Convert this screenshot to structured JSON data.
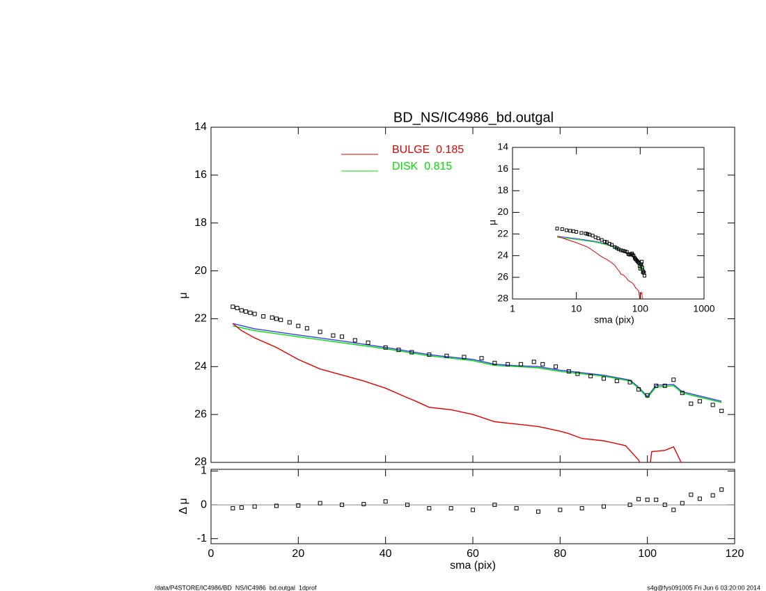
{
  "chart_data": [
    {
      "type": "line",
      "title": "BD_NS/IC4986_bd.outgal",
      "ylabel": "μ",
      "xlim": [
        0,
        120
      ],
      "xticks": [
        0,
        20,
        40,
        60,
        80,
        100,
        120
      ],
      "ylim": [
        14,
        28
      ],
      "yticks": [
        14,
        16,
        18,
        20,
        22,
        24,
        26,
        28
      ],
      "y_inverted": true,
      "series": [
        {
          "marker": "square",
          "color": "#000000",
          "x": [
            5,
            6,
            7,
            8,
            9,
            10,
            12,
            14,
            15,
            16,
            18,
            20,
            22,
            25,
            28,
            30,
            33,
            36,
            40,
            43,
            46,
            50,
            54,
            58,
            62,
            65,
            68,
            71,
            74,
            76,
            79,
            82,
            84,
            87,
            90,
            93,
            96,
            98,
            100,
            102,
            104,
            106,
            108,
            110,
            112,
            115,
            117
          ],
          "values": [
            21.5,
            21.55,
            21.65,
            21.7,
            21.75,
            21.8,
            21.9,
            21.95,
            22.0,
            22.05,
            22.15,
            22.3,
            22.4,
            22.55,
            22.7,
            22.75,
            22.9,
            23.0,
            23.2,
            23.3,
            23.4,
            23.5,
            23.55,
            23.6,
            23.65,
            23.85,
            23.9,
            23.9,
            23.8,
            23.9,
            24.0,
            24.2,
            24.3,
            24.4,
            24.5,
            24.6,
            24.65,
            24.95,
            25.2,
            24.8,
            24.8,
            24.55,
            25.1,
            25.55,
            25.45,
            25.6,
            25.85
          ]
        },
        {
          "color": "#3a3aff",
          "x": [
            5,
            10,
            20,
            30,
            40,
            50,
            60,
            65,
            70,
            75,
            80,
            90,
            96,
            98,
            100,
            102,
            106,
            108,
            117
          ],
          "values": [
            22.2,
            22.42,
            22.68,
            22.93,
            23.2,
            23.5,
            23.7,
            23.9,
            23.96,
            24.0,
            24.15,
            24.36,
            24.56,
            24.86,
            25.25,
            24.78,
            24.75,
            25.05,
            25.45
          ]
        },
        {
          "name": "BULGE  0.185",
          "color": "#e00000",
          "x": [
            5,
            7,
            10,
            15,
            20,
            25,
            30,
            35,
            40,
            45,
            47,
            50,
            55,
            60,
            65,
            70,
            75,
            80,
            82,
            85,
            90,
            95,
            98,
            99,
            100,
            101,
            104,
            106,
            108
          ],
          "values": [
            22.2,
            22.5,
            22.8,
            23.2,
            23.7,
            24.1,
            24.35,
            24.6,
            24.9,
            25.3,
            25.45,
            25.7,
            25.8,
            26.0,
            26.3,
            26.4,
            26.5,
            26.7,
            26.8,
            27.0,
            27.1,
            27.3,
            27.9,
            28.3,
            29.0,
            27.55,
            27.5,
            27.35,
            28.1
          ]
        },
        {
          "name": "DISK  0.815",
          "color": "#00e000",
          "x": [
            5,
            10,
            20,
            30,
            40,
            50,
            60,
            65,
            70,
            75,
            80,
            90,
            96,
            98,
            100,
            102,
            106,
            108,
            117
          ],
          "values": [
            22.3,
            22.5,
            22.75,
            23.0,
            23.25,
            23.55,
            23.75,
            23.95,
            24.0,
            24.05,
            24.2,
            24.4,
            24.6,
            24.9,
            25.3,
            24.85,
            24.8,
            25.1,
            25.5
          ]
        }
      ]
    },
    {
      "type": "scatter",
      "ylabel": "Δ μ",
      "xlabel": "sma (pix)",
      "xlim": [
        0,
        120
      ],
      "xticks": [
        0,
        20,
        40,
        60,
        80,
        100,
        120
      ],
      "ylim": [
        -1.15,
        1.05
      ],
      "yticks": [
        -1,
        0,
        1
      ],
      "x": [
        5,
        7,
        10,
        15,
        20,
        25,
        30,
        35,
        40,
        45,
        50,
        55,
        60,
        65,
        70,
        75,
        80,
        85,
        90,
        96,
        98,
        100,
        102,
        104,
        106,
        108,
        110,
        112,
        115,
        117
      ],
      "values": [
        -0.1,
        -0.08,
        -0.05,
        -0.03,
        -0.02,
        0.05,
        0,
        0.02,
        0.1,
        0,
        -0.1,
        -0.1,
        -0.15,
        0,
        -0.1,
        -0.2,
        -0.15,
        -0.1,
        -0.05,
        0,
        0.17,
        0.15,
        0.15,
        0,
        -0.15,
        0.05,
        0.3,
        0.18,
        0.28,
        0.45
      ]
    },
    {
      "type": "line",
      "xlabel": "sma (pix)",
      "ylabel": "μ",
      "log_x": true,
      "xlim": [
        1,
        1000
      ],
      "xticks": [
        1,
        10,
        100,
        1000
      ],
      "ylim": [
        14,
        28
      ],
      "yticks": [
        14,
        16,
        18,
        20,
        22,
        24,
        26,
        28
      ],
      "y_inverted": true
    }
  ],
  "footer": {
    "left": "/data/P4STORE/IC4986/BD_NS/IC4986_bd.outgal_1dprof",
    "right": "s4g@fys091005  Fri Jun  6 03:20:00 2014"
  }
}
